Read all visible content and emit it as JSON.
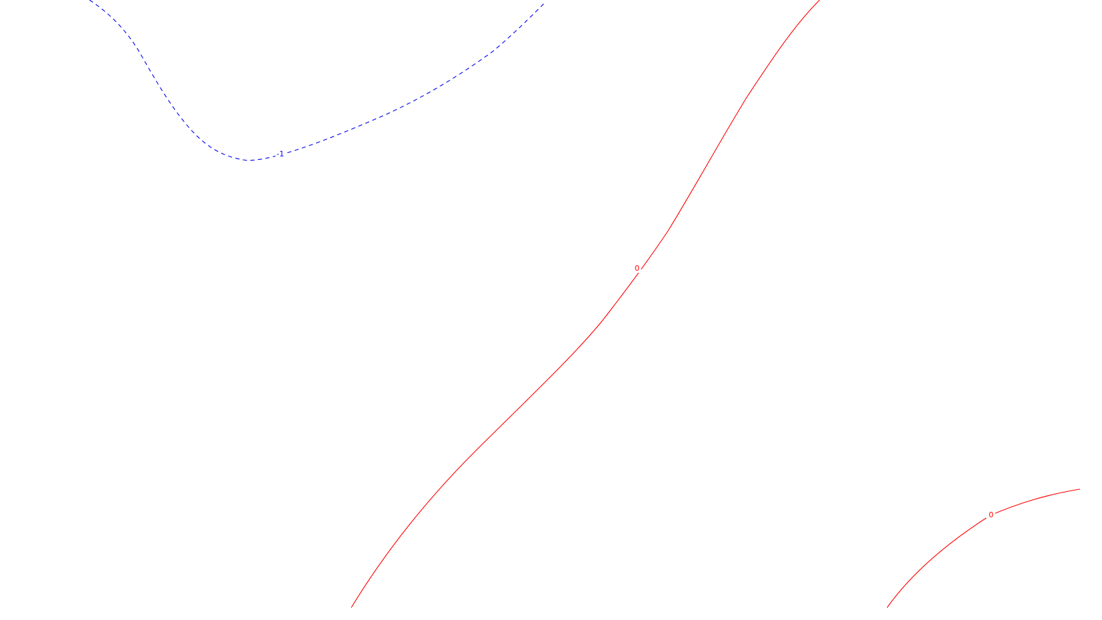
{
  "chart_data": {
    "type": "contour",
    "title": "",
    "xlabel": "",
    "ylabel": "",
    "grid": false,
    "legend": "none",
    "contours": [
      {
        "level": -1,
        "label": "-1",
        "color": "#0000ee",
        "line_style": "dashed"
      },
      {
        "level": 0,
        "label": "0",
        "color": "#ff0000",
        "line_style": "solid"
      },
      {
        "level": 0,
        "label": "0",
        "color": "#ff0000",
        "line_style": "solid"
      }
    ]
  }
}
